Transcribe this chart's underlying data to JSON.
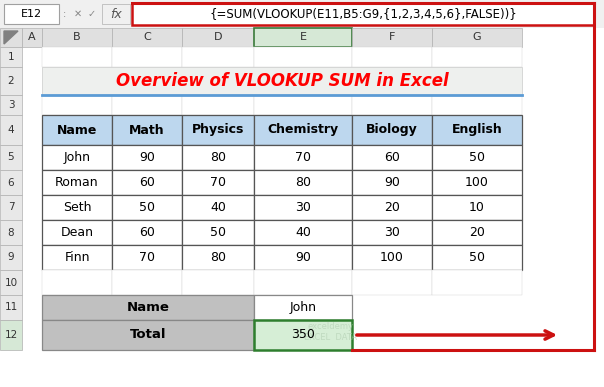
{
  "title": "Overview of VLOOKUP SUM in Excel",
  "title_color": "#FF0000",
  "formula_bar_text": "{=SUM(VLOOKUP(E11,B5:G9,{1,2,3,4,5,6},FALSE))}",
  "cell_ref": "E12",
  "col_headers": [
    "A",
    "B",
    "C",
    "D",
    "E",
    "F",
    "G"
  ],
  "table_headers": [
    "Name",
    "Math",
    "Physics",
    "Chemistry",
    "Biology",
    "English"
  ],
  "table_data": [
    [
      "John",
      "90",
      "80",
      "70",
      "60",
      "50"
    ],
    [
      "Roman",
      "60",
      "70",
      "80",
      "90",
      "100"
    ],
    [
      "Seth",
      "50",
      "40",
      "30",
      "20",
      "10"
    ],
    [
      "Dean",
      "60",
      "50",
      "40",
      "30",
      "20"
    ],
    [
      "Finn",
      "70",
      "80",
      "90",
      "100",
      "50"
    ]
  ],
  "bg_color": "#FFFFFF",
  "toolbar_bg": "#F0F0F0",
  "col_header_bg": "#E8E8E8",
  "col_header_sel_bg": "#D6E8D6",
  "col_header_sel_edge": "#3A7A3A",
  "row_header_bg": "#E8E8E8",
  "row12_header_bg": "#D6E8D6",
  "title_bg": "#EEF0EE",
  "table_header_bg": "#BDD7EE",
  "table_border": "#555555",
  "bottom_label_bg": "#C0C0C0",
  "bottom_value_bg": "#FFFFFF",
  "bottom_value350_bg": "#D6EED6",
  "bottom_value350_border": "#2E7E2E",
  "red_color": "#CC1111",
  "blue_line_color": "#5B9BD5",
  "watermark_color": "#B0CCB0"
}
